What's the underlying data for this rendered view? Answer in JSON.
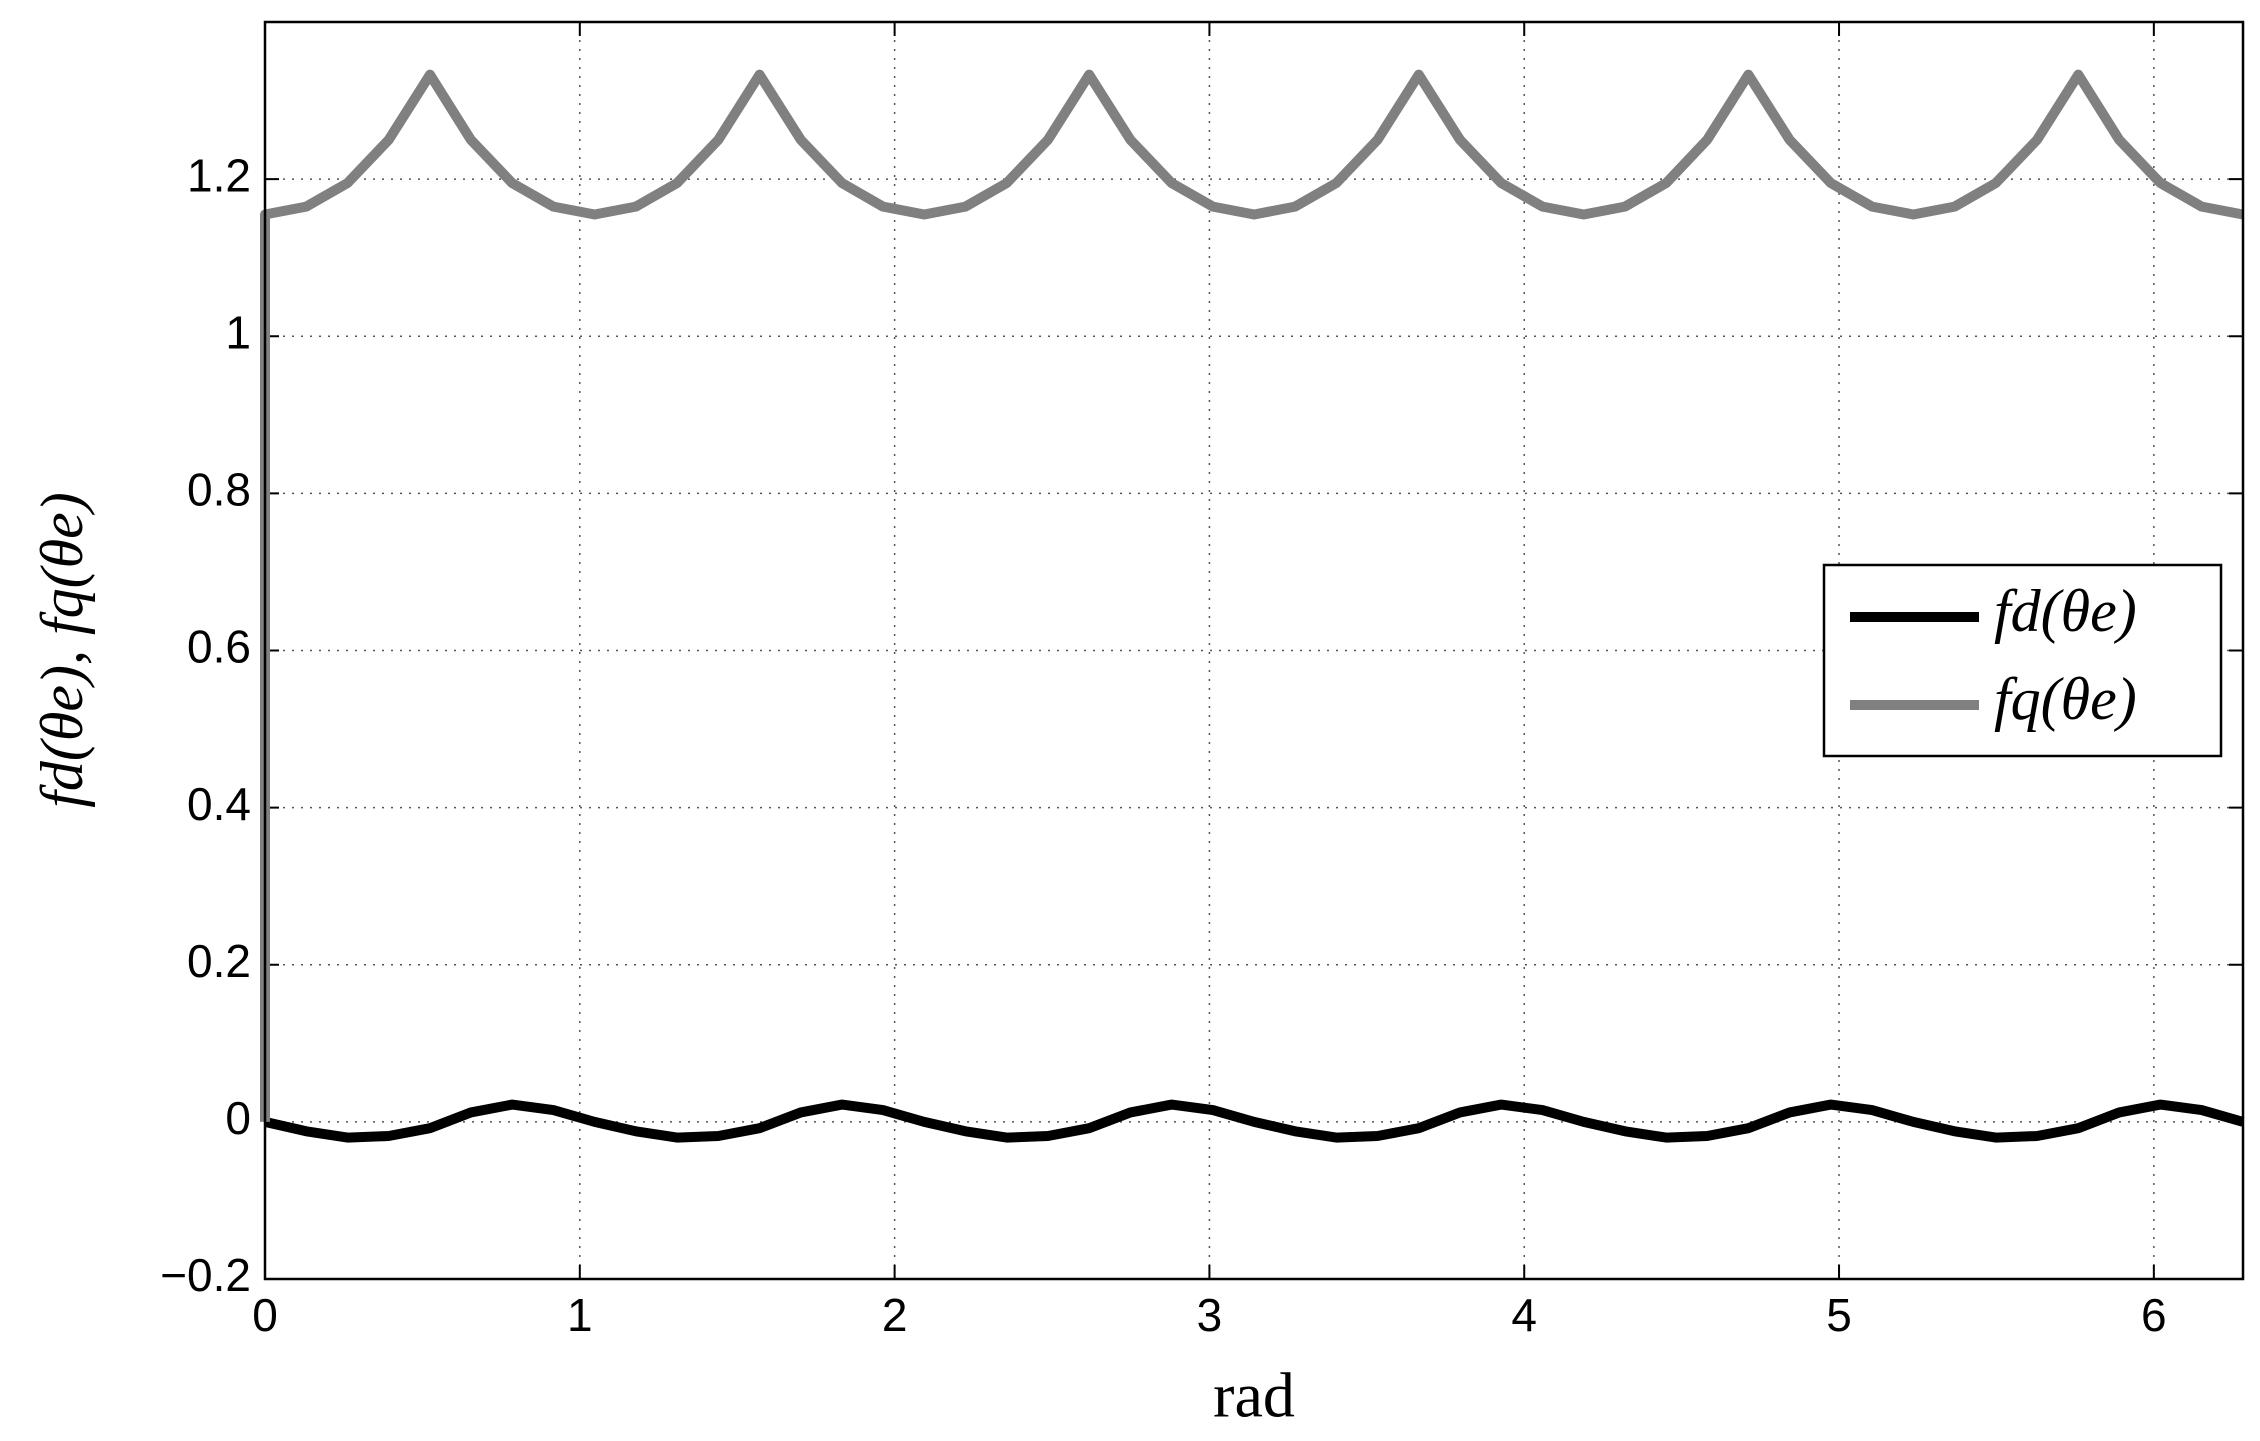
{
  "chart_data": {
    "type": "line",
    "xlabel": "rad",
    "ylabel": "fd(θe), fq(θe)",
    "x": [
      0,
      0,
      0.131,
      0.262,
      0.393,
      0.524,
      0.654,
      0.785,
      0.916,
      1.047,
      1.178,
      1.309,
      1.44,
      1.571,
      1.702,
      1.833,
      1.963,
      2.094,
      2.225,
      2.356,
      2.487,
      2.618,
      2.749,
      2.88,
      3.011,
      3.142,
      3.272,
      3.403,
      3.534,
      3.665,
      3.796,
      3.927,
      4.058,
      4.189,
      4.32,
      4.451,
      4.581,
      4.712,
      4.843,
      4.974,
      5.105,
      5.236,
      5.367,
      5.498,
      5.629,
      5.76,
      5.89,
      6.021,
      6.152,
      6.283
    ],
    "series": [
      {
        "name": "fd(θe)",
        "color": "#000000",
        "values": [
          0,
          0,
          -0.012,
          -0.02,
          -0.018,
          -0.008,
          0.012,
          0.022,
          0.015,
          0,
          -0.012,
          -0.02,
          -0.018,
          -0.008,
          0.012,
          0.022,
          0.015,
          0,
          -0.012,
          -0.02,
          -0.018,
          -0.008,
          0.012,
          0.022,
          0.015,
          0,
          -0.012,
          -0.02,
          -0.018,
          -0.008,
          0.012,
          0.022,
          0.015,
          0,
          -0.012,
          -0.02,
          -0.018,
          -0.008,
          0.012,
          0.022,
          0.015,
          0,
          -0.012,
          -0.02,
          -0.018,
          -0.008,
          0.012,
          0.022,
          0.015,
          0
        ]
      },
      {
        "name": "fq(θe)",
        "color": "#808080",
        "values": [
          0,
          1.155,
          1.165,
          1.195,
          1.25,
          1.333,
          1.25,
          1.195,
          1.165,
          1.155,
          1.165,
          1.195,
          1.25,
          1.333,
          1.25,
          1.195,
          1.165,
          1.155,
          1.165,
          1.195,
          1.25,
          1.333,
          1.25,
          1.195,
          1.165,
          1.155,
          1.165,
          1.195,
          1.25,
          1.333,
          1.25,
          1.195,
          1.165,
          1.155,
          1.165,
          1.195,
          1.25,
          1.333,
          1.25,
          1.195,
          1.165,
          1.155,
          1.165,
          1.195,
          1.25,
          1.333,
          1.25,
          1.195,
          1.165,
          1.155
        ]
      }
    ],
    "xlim": [
      0,
      6.2832
    ],
    "xticks": [
      0,
      1,
      2,
      3,
      4,
      5,
      6
    ],
    "ylim": [
      -0.2,
      1.4
    ],
    "yticks": [
      {
        "value": -0.2,
        "label": "−0.2"
      },
      0,
      0.2,
      0.4,
      0.6,
      0.8,
      1,
      1.2
    ],
    "grid": true,
    "legend": "east"
  }
}
